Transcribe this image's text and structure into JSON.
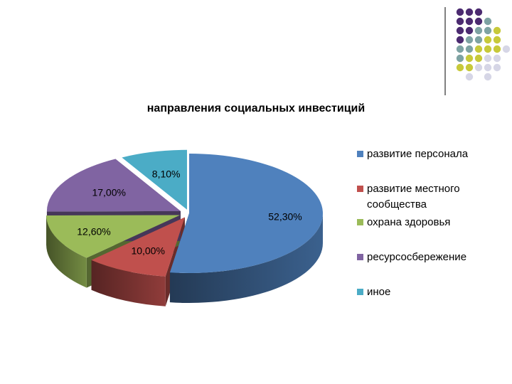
{
  "chart_data": {
    "type": "pie",
    "title": "направления социальных инвестиций",
    "categories": [
      "развитие персонала",
      "развитие местного сообщества",
      "охрана здоровья",
      "ресурсосбережение",
      "иное"
    ],
    "values": [
      52.3,
      10.0,
      12.6,
      17.0,
      8.1
    ],
    "data_labels": [
      "52,30%",
      "10,00%",
      "12,60%",
      "17,00%",
      "8,10%"
    ],
    "colors": [
      "#4F81BD",
      "#C0504D",
      "#9BBB59",
      "#8064A2",
      "#4BACC6"
    ],
    "legend_placement": "right",
    "style": "3d-exploded-pie"
  },
  "legend": {
    "items": [
      {
        "label": "развитие персонала"
      },
      {
        "label": "развитие местного сообщества"
      },
      {
        "label": "охрана здоровья"
      },
      {
        "label": "ресурсосбережение"
      },
      {
        "label": "иное"
      }
    ]
  },
  "decoration": {
    "dot_colors": [
      "#4B2A70",
      "#7EA3A3",
      "#C7C93A",
      "#D6D6E6"
    ]
  }
}
